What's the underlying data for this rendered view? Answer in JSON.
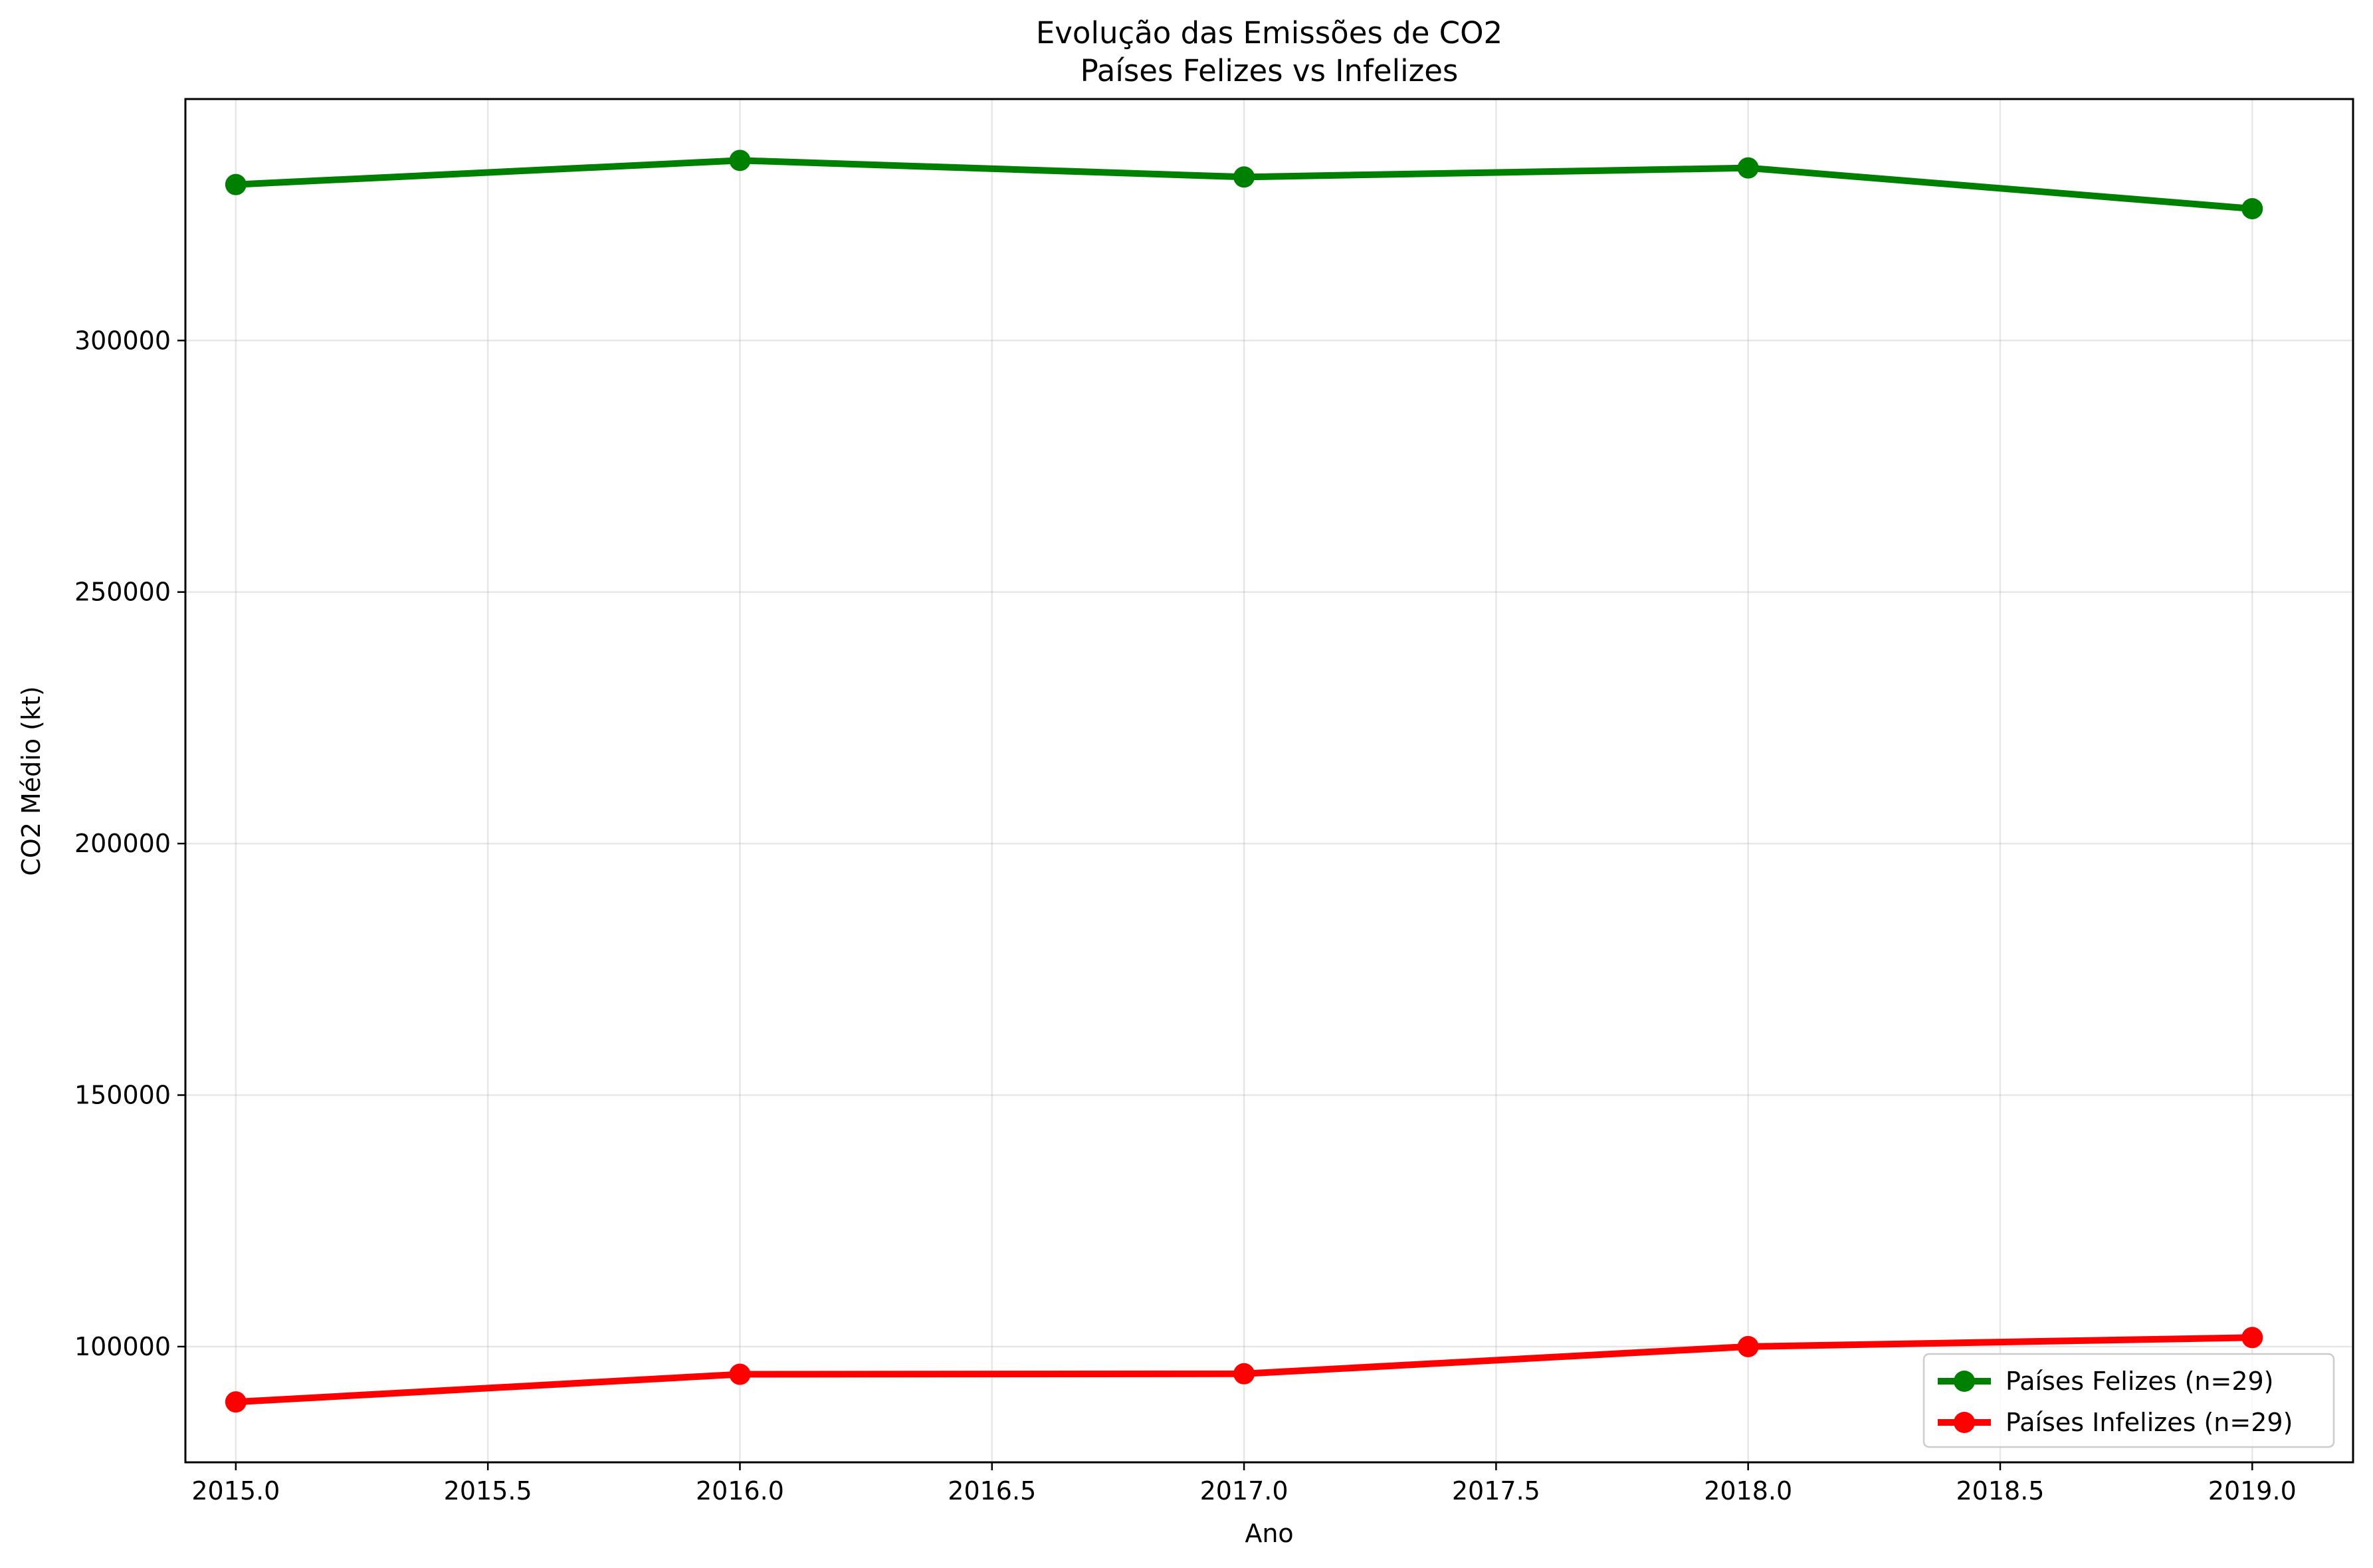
{
  "chart_data": {
    "type": "line",
    "title": "Evolução das Emissões de CO2",
    "subtitle": "Países Felizes vs Infelizes",
    "xlabel": "Ano",
    "ylabel": "CO2 Médio (kt)",
    "xlim": [
      2014.9,
      2019.2
    ],
    "ylim": [
      77000,
      348000
    ],
    "x_ticks": [
      2015.0,
      2015.5,
      2016.0,
      2016.5,
      2017.0,
      2017.5,
      2018.0,
      2018.5,
      2019.0
    ],
    "x_tick_labels": [
      "2015.0",
      "2015.5",
      "2016.0",
      "2016.5",
      "2017.0",
      "2017.5",
      "2018.0",
      "2018.5",
      "2019.0"
    ],
    "y_ticks": [
      100000,
      150000,
      200000,
      250000,
      300000
    ],
    "y_tick_labels": [
      "100000",
      "150000",
      "200000",
      "250000",
      "300000"
    ],
    "grid": true,
    "legend_position": "lower right",
    "x": [
      2015,
      2016,
      2017,
      2018,
      2019
    ],
    "series": [
      {
        "name": "Países Felizes (n=29)",
        "color": "#008000",
        "values": [
          331000,
          335800,
          332500,
          334300,
          326200
        ]
      },
      {
        "name": "Países Infelizes (n=29)",
        "color": "#ff0000",
        "values": [
          89000,
          94500,
          94600,
          100000,
          101800
        ]
      }
    ]
  }
}
